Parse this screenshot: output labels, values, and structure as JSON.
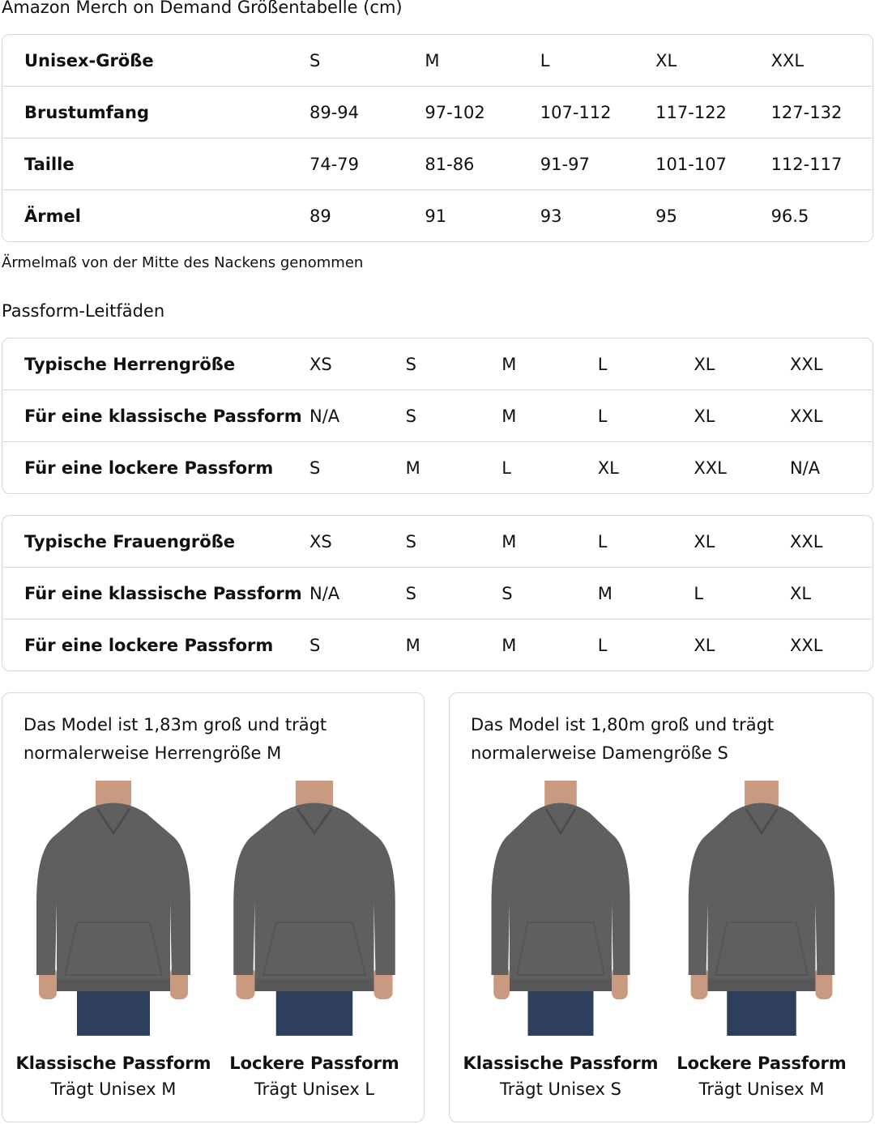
{
  "title": "Amazon Merch on Demand Größentabelle (cm)",
  "size_table": {
    "rows": [
      {
        "label": "Unisex-Größe",
        "values": [
          "S",
          "M",
          "L",
          "XL",
          "XXL"
        ]
      },
      {
        "label": "Brustumfang",
        "values": [
          "89-94",
          "97-102",
          "107-112",
          "117-122",
          "127-132"
        ]
      },
      {
        "label": "Taille",
        "values": [
          "74-79",
          "81-86",
          "91-97",
          "101-107",
          "112-117"
        ]
      },
      {
        "label": "Ärmel",
        "values": [
          "89",
          "91",
          "93",
          "95",
          "96.5"
        ]
      }
    ]
  },
  "note": "Ärmelmaß von der Mitte des Nackens genommen",
  "fit_heading": "Passform-Leitfäden",
  "men_table": {
    "rows": [
      {
        "label": "Typische Herrengröße",
        "values": [
          "XS",
          "S",
          "M",
          "L",
          "XL",
          "XXL"
        ]
      },
      {
        "label": "Für eine klassische Passform",
        "values": [
          "N/A",
          "S",
          "M",
          "L",
          "XL",
          "XXL"
        ]
      },
      {
        "label": "Für eine lockere Passform",
        "values": [
          "S",
          "M",
          "L",
          "XL",
          "XXL",
          "N/A"
        ]
      }
    ]
  },
  "women_table": {
    "rows": [
      {
        "label": "Typische Frauengröße",
        "values": [
          "XS",
          "S",
          "M",
          "L",
          "XL",
          "XXL"
        ]
      },
      {
        "label": "Für eine klassische Passform",
        "values": [
          "N/A",
          "S",
          "S",
          "M",
          "L",
          "XL"
        ]
      },
      {
        "label": "Für eine lockere Passform",
        "values": [
          "S",
          "M",
          "M",
          "L",
          "XL",
          "XXL"
        ]
      }
    ]
  },
  "cards": [
    {
      "line1": "Das Model ist 1,83m groß und trägt",
      "line2": "normalerweise Herrengröße M",
      "figures": [
        {
          "caption": "Klassische Passform",
          "wears": "Trägt Unisex M"
        },
        {
          "caption": "Lockere Passform",
          "wears": "Trägt Unisex L"
        }
      ]
    },
    {
      "line1": "Das Model ist 1,80m groß und trägt",
      "line2": "normalerweise Damengröße S",
      "figures": [
        {
          "caption": "Klassische Passform",
          "wears": "Trägt Unisex S"
        },
        {
          "caption": "Lockere Passform",
          "wears": "Trägt Unisex M"
        }
      ]
    }
  ],
  "colors": {
    "hoodie": "#5f5f5f",
    "jeans": "#2e3f5c",
    "skin": "#c99a80",
    "border": "#d5d9d9"
  }
}
